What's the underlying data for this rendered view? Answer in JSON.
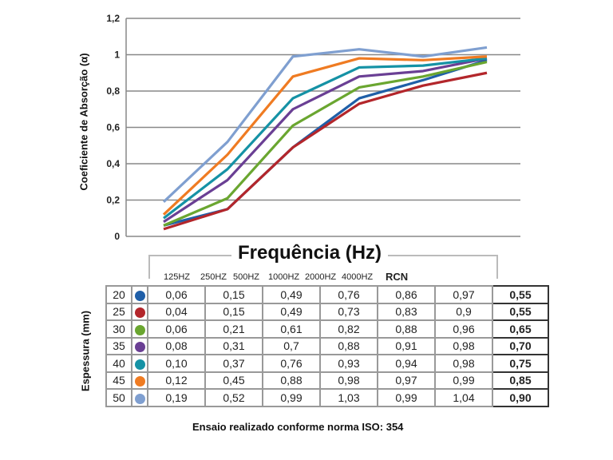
{
  "chart_data": {
    "type": "line",
    "ylabel": "Coeficiente de Absorção (α)",
    "xlabel": "Frequência (Hz)",
    "ylim": [
      0,
      1.2
    ],
    "yticks": [
      "0",
      "0,2",
      "0,4",
      "0,6",
      "0,8",
      "1",
      "1,2"
    ],
    "grid": true,
    "categories": [
      "125HZ",
      "250HZ",
      "500HZ",
      "1000HZ",
      "2000HZ",
      "4000HZ"
    ],
    "series": [
      {
        "name": "20",
        "color": "#1f5fa8",
        "values": [
          0.06,
          0.15,
          0.49,
          0.76,
          0.86,
          0.97
        ]
      },
      {
        "name": "25",
        "color": "#b3262b",
        "values": [
          0.04,
          0.15,
          0.49,
          0.73,
          0.83,
          0.9
        ]
      },
      {
        "name": "30",
        "color": "#6aa630",
        "values": [
          0.06,
          0.21,
          0.61,
          0.82,
          0.88,
          0.96
        ]
      },
      {
        "name": "35",
        "color": "#6a3f94",
        "values": [
          0.08,
          0.31,
          0.7,
          0.88,
          0.91,
          0.98
        ]
      },
      {
        "name": "40",
        "color": "#1592a5",
        "values": [
          0.1,
          0.37,
          0.76,
          0.93,
          0.94,
          0.98
        ]
      },
      {
        "name": "45",
        "color": "#ef7b22",
        "values": [
          0.12,
          0.45,
          0.88,
          0.98,
          0.97,
          0.99
        ]
      },
      {
        "name": "50",
        "color": "#7f9fd0",
        "values": [
          0.19,
          0.52,
          0.99,
          1.03,
          0.99,
          1.04
        ]
      }
    ]
  },
  "table": {
    "header_rcn": "RCN",
    "row_label": "Espessura (mm)",
    "rows": [
      {
        "thickness": "20",
        "values": [
          "0,06",
          "0,15",
          "0,49",
          "0,76",
          "0,86",
          "0,97"
        ],
        "rcn": "0,55"
      },
      {
        "thickness": "25",
        "values": [
          "0,04",
          "0,15",
          "0,49",
          "0,73",
          "0,83",
          "0,9"
        ],
        "rcn": "0,55"
      },
      {
        "thickness": "30",
        "values": [
          "0,06",
          "0,21",
          "0,61",
          "0,82",
          "0,88",
          "0,96"
        ],
        "rcn": "0,65"
      },
      {
        "thickness": "35",
        "values": [
          "0,08",
          "0,31",
          "0,7",
          "0,88",
          "0,91",
          "0,98"
        ],
        "rcn": "0,70"
      },
      {
        "thickness": "40",
        "values": [
          "0,10",
          "0,37",
          "0,76",
          "0,93",
          "0,94",
          "0,98"
        ],
        "rcn": "0,75"
      },
      {
        "thickness": "45",
        "values": [
          "0,12",
          "0,45",
          "0,88",
          "0,98",
          "0,97",
          "0,99"
        ],
        "rcn": "0,85"
      },
      {
        "thickness": "50",
        "values": [
          "0,19",
          "0,52",
          "0,99",
          "1,03",
          "0,99",
          "1,04"
        ],
        "rcn": "0,90"
      }
    ]
  },
  "footer": "Ensaio realizado conforme norma ISO: 354"
}
